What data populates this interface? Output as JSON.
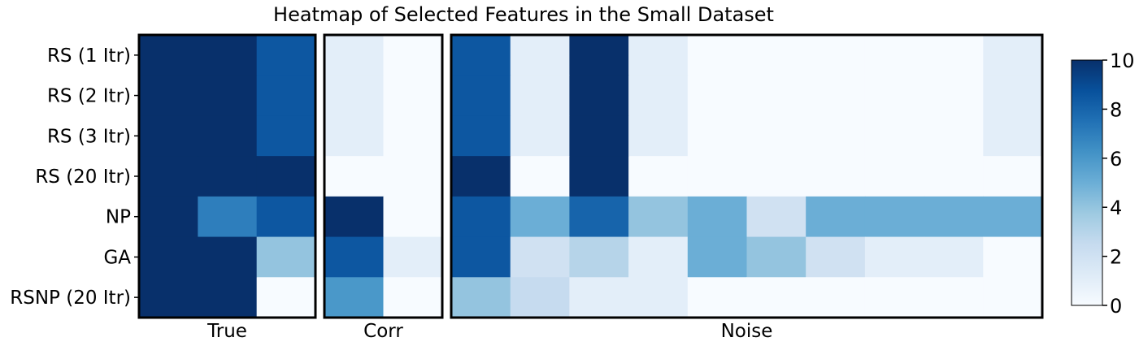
{
  "chart_data": {
    "type": "heatmap",
    "title": "Heatmap of Selected Features in the Small Dataset",
    "rows": [
      "RS (1 Itr)",
      "RS (2 Itr)",
      "RS (3 Itr)",
      "RS (20 Itr)",
      "NP",
      "GA",
      "RSNP (20 Itr)"
    ],
    "panels": [
      {
        "label": "True",
        "columns": 3,
        "values": [
          [
            10,
            10,
            8.5
          ],
          [
            10,
            10,
            8.5
          ],
          [
            10,
            10,
            8.5
          ],
          [
            10,
            10,
            10
          ],
          [
            10,
            7,
            8.5
          ],
          [
            10,
            10,
            4
          ],
          [
            10,
            10,
            0
          ]
        ]
      },
      {
        "label": "Corr",
        "columns": 2,
        "values": [
          [
            1,
            0
          ],
          [
            1,
            0
          ],
          [
            1,
            0
          ],
          [
            0,
            0
          ],
          [
            10,
            0
          ],
          [
            8.5,
            1
          ],
          [
            6,
            0
          ]
        ]
      },
      {
        "label": "Noise",
        "columns": 10,
        "values": [
          [
            8.5,
            1,
            10,
            1,
            0,
            0,
            0,
            0,
            0,
            1
          ],
          [
            8.5,
            1,
            10,
            1,
            0,
            0,
            0,
            0,
            0,
            1
          ],
          [
            8.5,
            1,
            10,
            1,
            0,
            0,
            0,
            0,
            0,
            1
          ],
          [
            10,
            0,
            10,
            0,
            0,
            0,
            0,
            0,
            0,
            0
          ],
          [
            8.5,
            5,
            8,
            4,
            5,
            2,
            5,
            5,
            5,
            5
          ],
          [
            8.5,
            2,
            3,
            1,
            5,
            4,
            2,
            1,
            1,
            0
          ],
          [
            4,
            2.5,
            1,
            1,
            0,
            0,
            0,
            0,
            0,
            0
          ]
        ]
      }
    ],
    "colorbar": {
      "min": 0,
      "max": 10,
      "ticks": [
        "0",
        "2",
        "4",
        "6",
        "8",
        "10"
      ],
      "colormap": "Blues"
    }
  }
}
